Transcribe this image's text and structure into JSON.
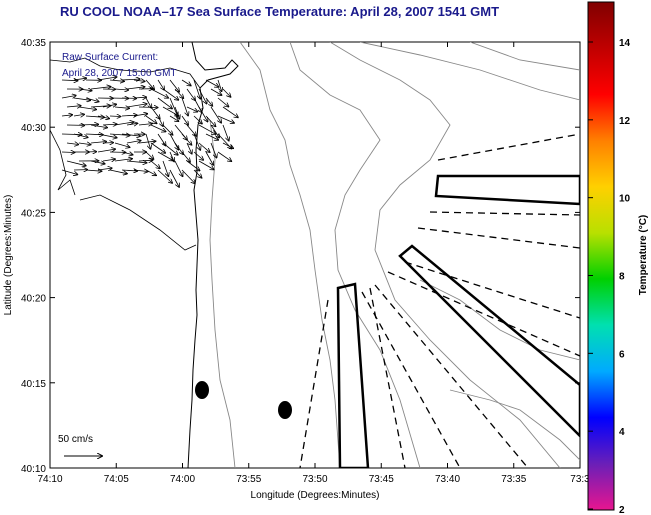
{
  "title": "RU COOL  NOAA–17  Sea Surface Temperature:  April 28, 2007 1541 GMT",
  "legend": {
    "line1": "Raw Surface Current:",
    "line2": "April 28, 2007 15:00 GMT"
  },
  "scale_label": "50 cm/s",
  "x_axis": {
    "label": "Longitude (Degrees:Minutes)",
    "ticks": [
      "74:10",
      "74:05",
      "74:00",
      "73:55",
      "73:50",
      "73:45",
      "73:40",
      "73:35",
      "73:3"
    ]
  },
  "y_axis": {
    "label": "Latitude (Degrees:Minutes)",
    "ticks": [
      "40:35",
      "40:30",
      "40:25",
      "40:20",
      "40:15",
      "40:10"
    ]
  },
  "colorbar": {
    "label": "Temperature (°C)",
    "ticks": [
      "14",
      "12",
      "10",
      "8",
      "6",
      "4",
      "2"
    ],
    "colors": [
      "#e8158f",
      "#6a1fb8",
      "#0000ff",
      "#00aaff",
      "#00e0b0",
      "#00d000",
      "#b8e000",
      "#ffd000",
      "#ff8000",
      "#ff0000",
      "#c00000",
      "#800000"
    ]
  },
  "markers": [
    {
      "name": "buoy-marker-west"
    },
    {
      "name": "buoy-marker-east"
    }
  ]
}
